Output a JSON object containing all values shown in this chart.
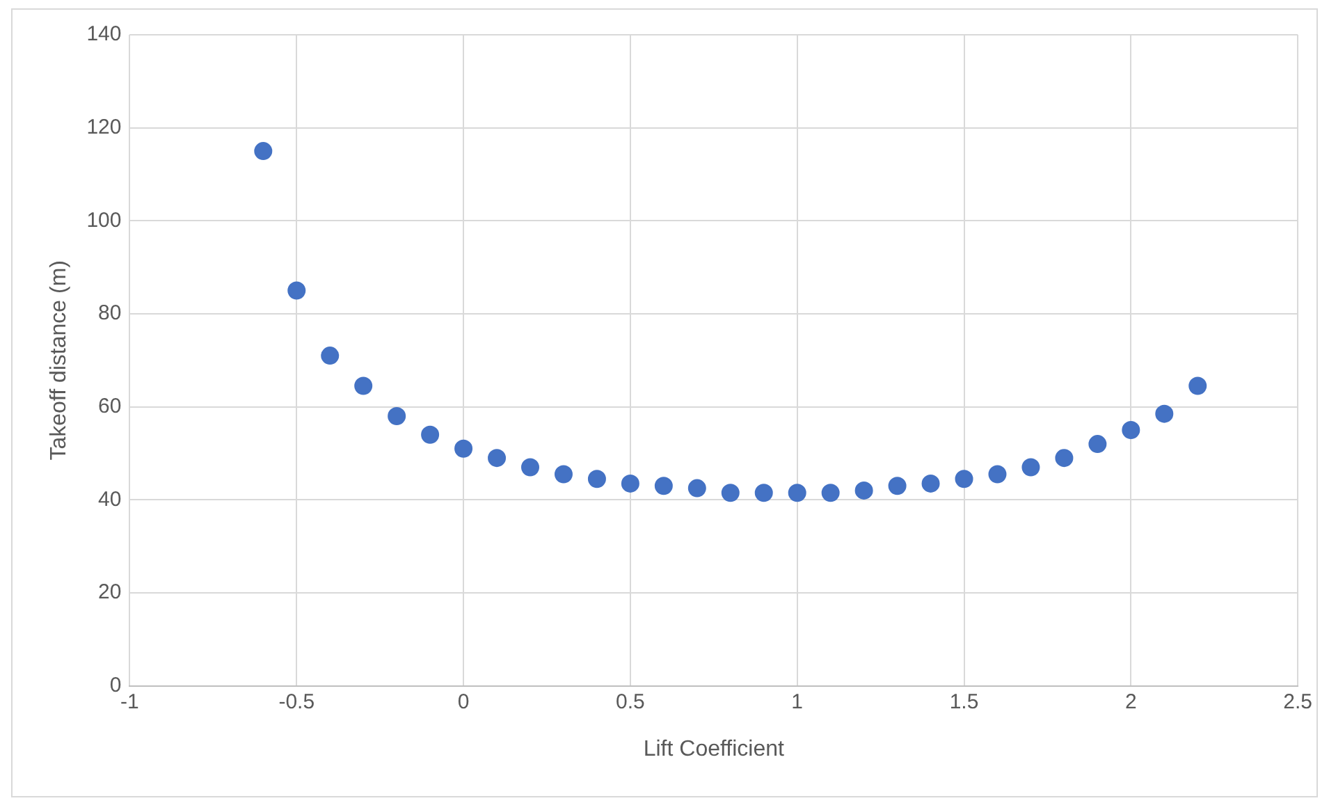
{
  "chart_data": {
    "type": "scatter",
    "xlabel": "Lift Coefficient",
    "ylabel": "Takeoff distance (m)",
    "x": [
      -0.6,
      -0.5,
      -0.4,
      -0.3,
      -0.2,
      -0.1,
      0,
      0.1,
      0.2,
      0.3,
      0.4,
      0.5,
      0.6,
      0.7,
      0.8,
      0.9,
      1,
      1.1,
      1.2,
      1.3,
      1.4,
      1.5,
      1.6,
      1.7,
      1.8,
      1.9,
      2,
      2.1,
      2.2
    ],
    "series": [
      {
        "color": "#4472c4",
        "values": [
          115,
          85,
          71,
          64.5,
          58,
          54,
          51,
          49,
          47,
          45.5,
          44.5,
          43.5,
          43,
          42.5,
          41.5,
          41.5,
          41.5,
          41.5,
          42,
          43,
          43.5,
          44.5,
          45.5,
          47,
          49,
          52,
          55,
          58.5,
          64.5
        ]
      }
    ],
    "xlim": [
      -1,
      2.5
    ],
    "xticks": [
      -1,
      -0.5,
      0,
      0.5,
      1,
      1.5,
      2,
      2.5
    ],
    "ylim": [
      0,
      140
    ],
    "yticks": [
      0,
      20,
      40,
      60,
      80,
      100,
      120,
      140
    ],
    "grid": true,
    "legend": false,
    "marker": "circle"
  }
}
